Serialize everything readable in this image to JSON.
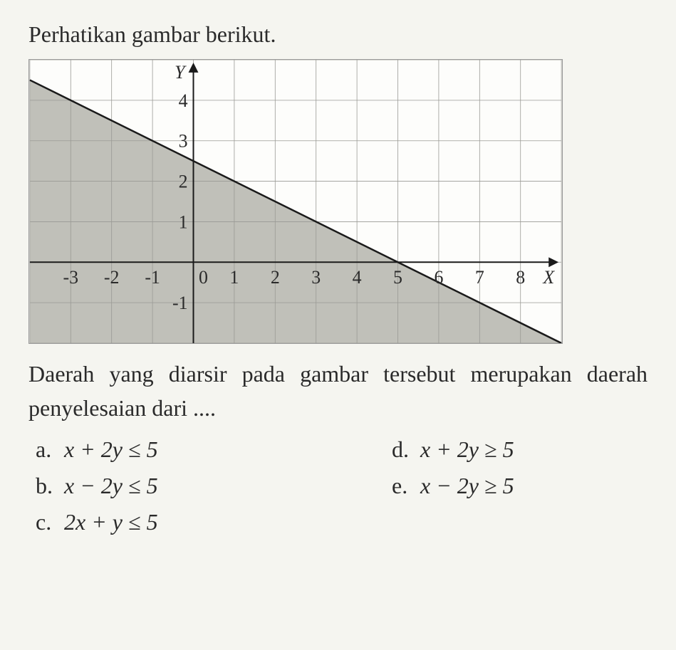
{
  "question": {
    "intro": "Perhatikan gambar berikut.",
    "resultLine1": "Daerah yang diarsir pada gambar tersebut",
    "resultLine2": "merupakan daerah penyelesaian dari ...."
  },
  "chart": {
    "type": "line-inequality",
    "x_axis_label": "X",
    "y_axis_label": "Y",
    "xlim": [
      -4,
      9
    ],
    "ylim": [
      -2,
      5
    ],
    "x_ticks": [
      -3,
      -2,
      -1,
      0,
      1,
      2,
      3,
      4,
      5,
      6,
      7,
      8
    ],
    "y_ticks": [
      -1,
      1,
      2,
      3,
      4
    ],
    "grid_color": "#9a9a95",
    "grid_width": 0.8,
    "border_color": "#888888",
    "background_color": "#fdfdfb",
    "axis_color": "#1a1a1a",
    "axis_width": 2,
    "line": {
      "points": [
        [
          -4,
          4.5
        ],
        [
          9,
          -2
        ]
      ],
      "equation_x_intercept": 5,
      "equation_y_intercept": 2.5,
      "color": "#1a1a1a",
      "width": 2.5
    },
    "shaded_region": {
      "color": "#b5b5ad",
      "opacity": 0.85,
      "direction": "below"
    },
    "tick_fontsize": 26,
    "axis_label_fontsize": 26,
    "tick_color": "#2a2a2a",
    "font_family": "Times New Roman"
  },
  "options": {
    "a": {
      "label": "a.",
      "var1": "x",
      "op1": " + 2",
      "var2": "y",
      "rel": " ≤ 5"
    },
    "b": {
      "label": "b.",
      "var1": "x",
      "op1": " − 2",
      "var2": "y",
      "rel": " ≤ 5"
    },
    "c": {
      "label": "c.",
      "var1": "2x",
      "op1": " + ",
      "var2": "y",
      "rel": " ≤ 5"
    },
    "d": {
      "label": "d.",
      "var1": "x",
      "op1": " + 2",
      "var2": "y",
      "rel": " ≥ 5"
    },
    "e": {
      "label": "e.",
      "var1": "x",
      "op1": " − 2",
      "var2": "y",
      "rel": " ≥ 5"
    }
  }
}
